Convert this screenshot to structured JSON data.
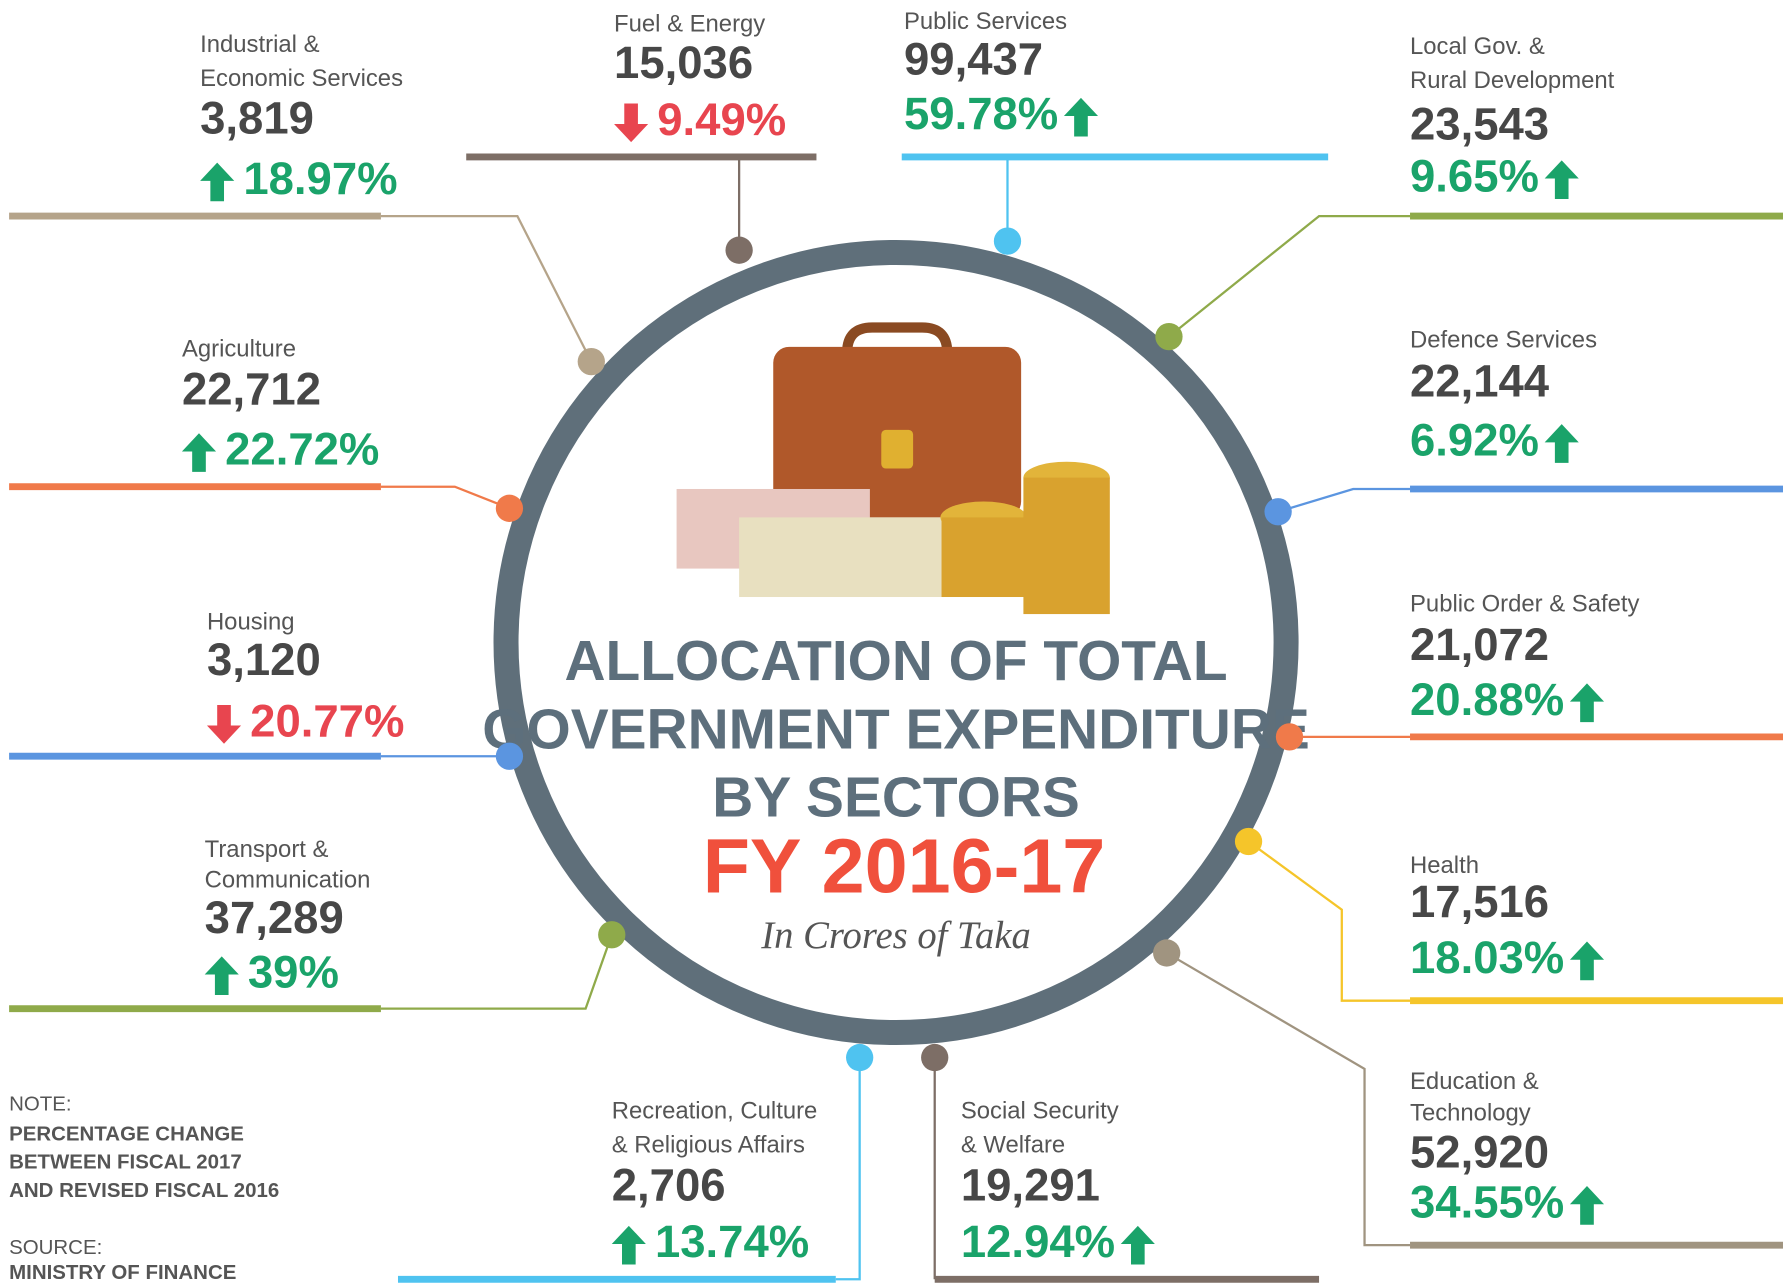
{
  "title_lines": [
    "ALLOCATION OF TOTAL",
    "GOVERNMENT EXPENDITURE",
    "BY SECTORS"
  ],
  "fiscal_year": "FY 2016-17",
  "unit_note": "In Crores of Taka",
  "note": {
    "heading": "NOTE:",
    "lines": [
      "PERCENTAGE CHANGE",
      "BETWEEN FISCAL 2017",
      "AND REVISED FISCAL 2016"
    ]
  },
  "source": {
    "heading": "SOURCE:",
    "text": "MINISTRY OF FINANCE"
  },
  "sectors": [
    {
      "label": [
        "Industrial &",
        "Economic Services"
      ],
      "amount": "3,819",
      "change": "18.97%",
      "direction": "up",
      "color": "#b5a48a"
    },
    {
      "label": [
        "Fuel & Energy"
      ],
      "amount": "15,036",
      "change": "9.49%",
      "direction": "down",
      "color": "#7d6e66"
    },
    {
      "label": [
        "Public Services"
      ],
      "amount": "99,437",
      "change": "59.78%",
      "direction": "up",
      "color": "#4fc3f0"
    },
    {
      "label": [
        "Local Gov. &",
        "Rural Development"
      ],
      "amount": "23,543",
      "change": "9.65%",
      "direction": "up",
      "color": "#8faa4a"
    },
    {
      "label": [
        "Defence Services"
      ],
      "amount": "22,144",
      "change": "6.92%",
      "direction": "up",
      "color": "#5b95e0"
    },
    {
      "label": [
        "Public Order & Safety"
      ],
      "amount": "21,072",
      "change": "20.88%",
      "direction": "up",
      "color": "#f07a4a"
    },
    {
      "label": [
        "Health"
      ],
      "amount": "17,516",
      "change": "18.03%",
      "direction": "up",
      "color": "#f5c52a"
    },
    {
      "label": [
        "Education &",
        "Technology"
      ],
      "amount": "52,920",
      "change": "34.55%",
      "direction": "up",
      "color": "#a09480"
    },
    {
      "label": [
        "Social Security",
        "& Welfare"
      ],
      "amount": "19,291",
      "change": "12.94%",
      "direction": "up",
      "color": "#7d6e66"
    },
    {
      "label": [
        "Recreation, Culture",
        "& Religious Affairs"
      ],
      "amount": "2,706",
      "change": "13.74%",
      "direction": "up",
      "color": "#4fc3f0"
    },
    {
      "label": [
        "Transport &",
        "Communication"
      ],
      "amount": "37,289",
      "change": "39%",
      "direction": "up",
      "color": "#8faa4a"
    },
    {
      "label": [
        "Housing"
      ],
      "amount": "3,120",
      "change": "20.77%",
      "direction": "down",
      "color": "#5b95e0"
    },
    {
      "label": [
        "Agriculture"
      ],
      "amount": "22,712",
      "change": "22.72%",
      "direction": "up",
      "color": "#f07a4a"
    }
  ]
}
